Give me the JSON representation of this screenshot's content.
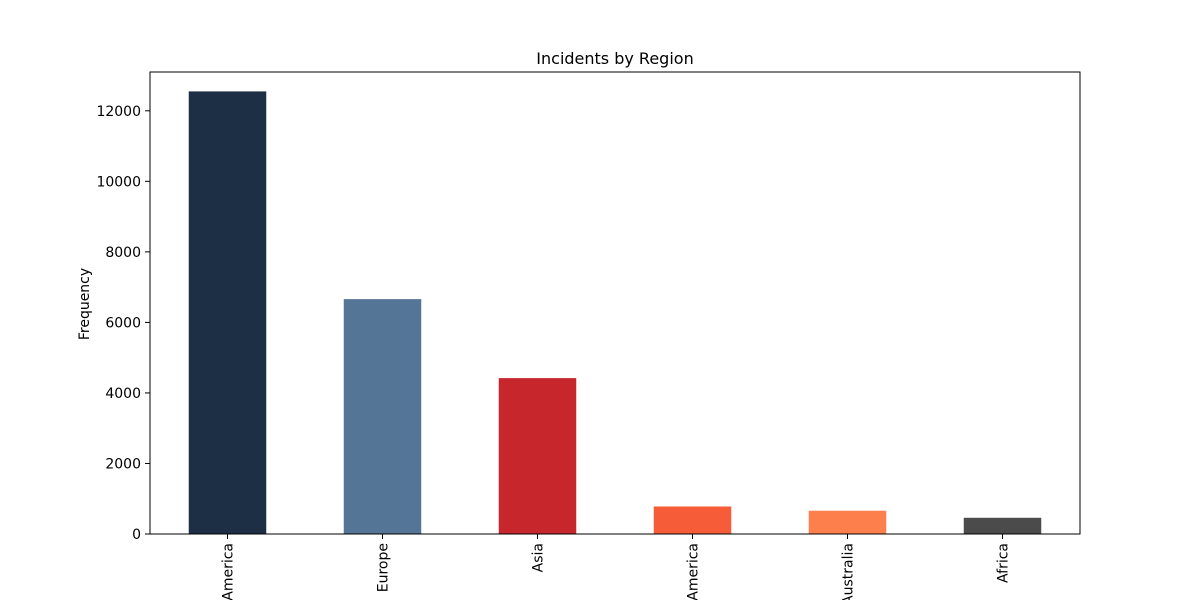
{
  "chart_data": {
    "type": "bar",
    "title": "Incidents by Region",
    "xlabel": "",
    "ylabel": "Frequency",
    "categories": [
      "America",
      "Europe",
      "Asia",
      "America",
      "Australia",
      "Africa"
    ],
    "values": [
      12550,
      6660,
      4420,
      780,
      660,
      460
    ],
    "colors": [
      "#1d2f44",
      "#557596",
      "#c6262c",
      "#f55c37",
      "#fd7f4c",
      "#4b4b4b"
    ],
    "ylim": [
      0,
      13100
    ],
    "yticks": [
      0,
      2000,
      4000,
      6000,
      8000,
      10000,
      12000
    ],
    "ytick_labels": [
      "0",
      "2000",
      "4000",
      "6000",
      "8000",
      "10000",
      "12000"
    ],
    "grid": false,
    "legend": "none"
  }
}
